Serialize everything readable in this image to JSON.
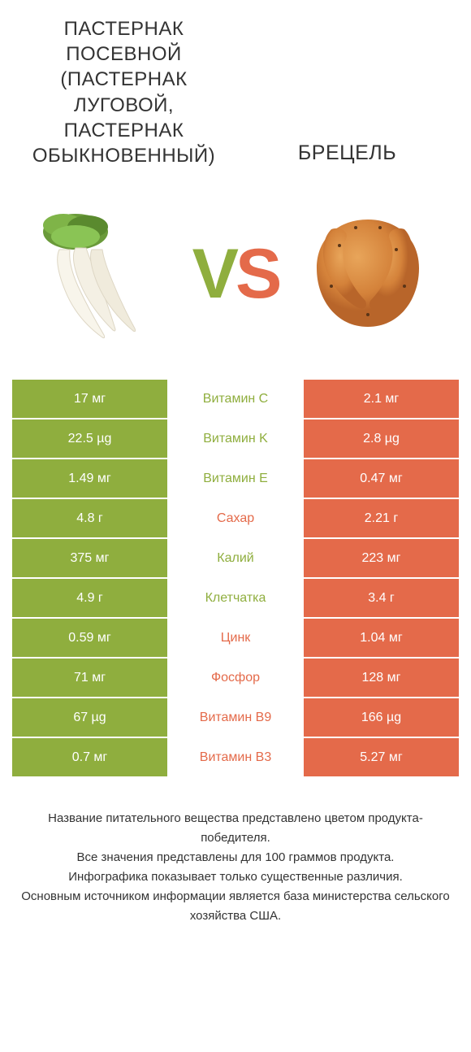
{
  "header": {
    "left": "ПАСТЕРНАК ПОСЕВНОЙ (ПАСТЕРНАК ЛУГОВОЙ, ПАСТЕРНАК ОБЫКНОВЕННЫЙ)",
    "right": "БРЕЦЕЛЬ"
  },
  "vs": {
    "v": "V",
    "s": "S"
  },
  "colors": {
    "left": "#8fae3e",
    "right": "#e46a4a"
  },
  "rows": [
    {
      "left": "17 мг",
      "label": "Витамин C",
      "right": "2.1 мг",
      "winner": "left"
    },
    {
      "left": "22.5 µg",
      "label": "Витамин K",
      "right": "2.8 µg",
      "winner": "left"
    },
    {
      "left": "1.49 мг",
      "label": "Витамин E",
      "right": "0.47 мг",
      "winner": "left"
    },
    {
      "left": "4.8 г",
      "label": "Сахар",
      "right": "2.21 г",
      "winner": "right"
    },
    {
      "left": "375 мг",
      "label": "Калий",
      "right": "223 мг",
      "winner": "left"
    },
    {
      "left": "4.9 г",
      "label": "Клетчатка",
      "right": "3.4 г",
      "winner": "left"
    },
    {
      "left": "0.59 мг",
      "label": "Цинк",
      "right": "1.04 мг",
      "winner": "right"
    },
    {
      "left": "71 мг",
      "label": "Фосфор",
      "right": "128 мг",
      "winner": "right"
    },
    {
      "left": "67 µg",
      "label": "Витамин B9",
      "right": "166 µg",
      "winner": "right"
    },
    {
      "left": "0.7 мг",
      "label": "Витамин B3",
      "right": "5.27 мг",
      "winner": "right"
    }
  ],
  "footer": "Название питательного вещества представлено цветом продукта-победителя.\nВсе значения представлены для 100 граммов продукта.\nИнфографика показывает только существенные различия.\nОсновным источником информации является база министерства сельского хозяйства США."
}
